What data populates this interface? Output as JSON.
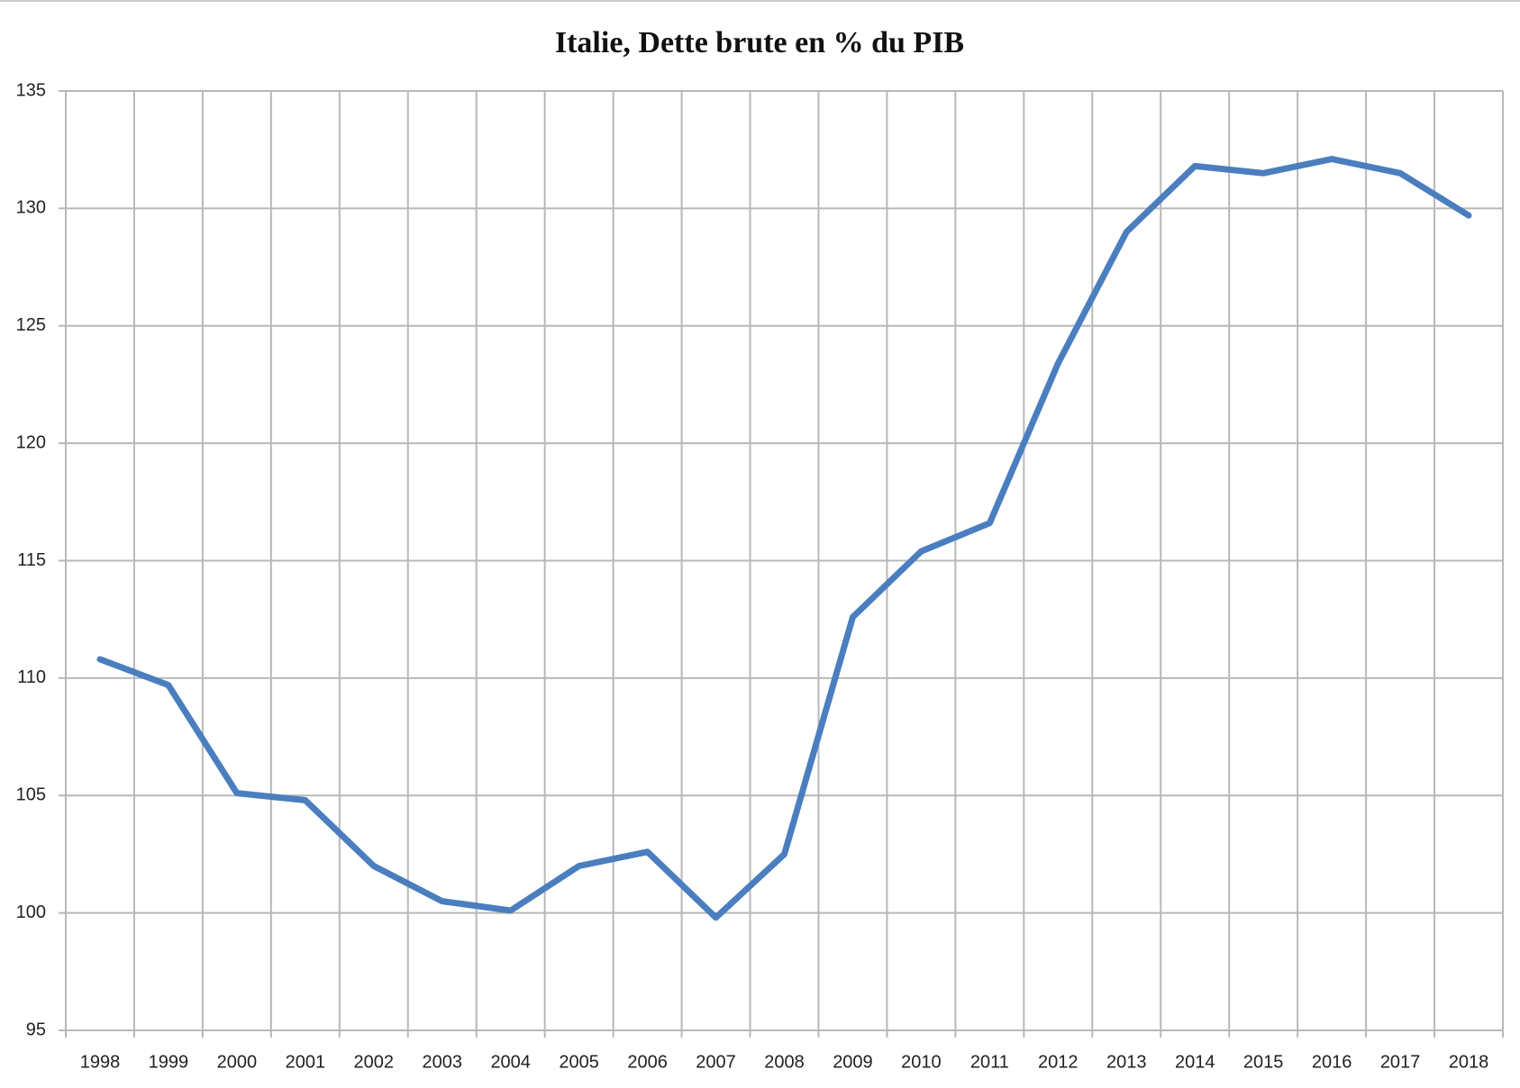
{
  "chart_data": {
    "type": "line",
    "title": "Italie, Dette brute en % du PIB",
    "categories": [
      "1998",
      "1999",
      "2000",
      "2001",
      "2002",
      "2003",
      "2004",
      "2005",
      "2006",
      "2007",
      "2008",
      "2009",
      "2010",
      "2011",
      "2012",
      "2013",
      "2014",
      "2015",
      "2016",
      "2017",
      "2018"
    ],
    "series": [
      {
        "name": "Italie",
        "color": "#4a7ebf",
        "values": [
          110.8,
          109.7,
          105.1,
          104.8,
          102.0,
          100.5,
          100.1,
          102.0,
          102.6,
          99.8,
          102.5,
          112.6,
          115.4,
          116.6,
          123.4,
          129.0,
          131.8,
          131.5,
          132.1,
          131.5,
          129.7
        ]
      }
    ],
    "ylim": [
      95,
      135
    ],
    "yticks": [
      95,
      100,
      105,
      110,
      115,
      120,
      125,
      130,
      135
    ],
    "grid": true
  }
}
